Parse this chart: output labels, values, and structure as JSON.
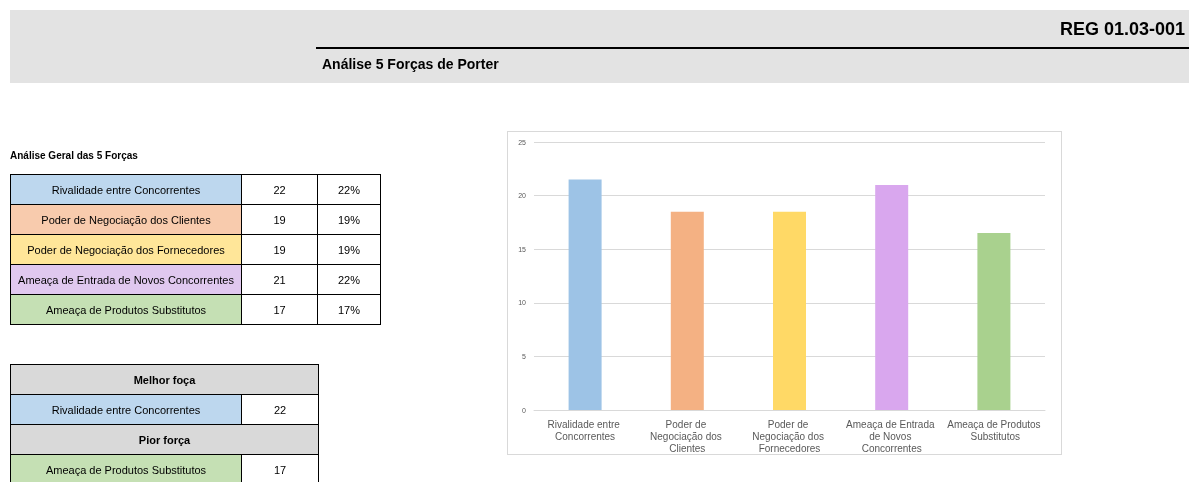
{
  "chart_data": [
    {
      "type": "other",
      "title": "Análise 5 Forças de Porter",
      "annotations": [
        "REG 01.03-001"
      ]
    },
    {
      "type": "other",
      "title": "Análise Geral das 5 Forças",
      "categories": [
        "Rivalidade entre Concorrentes",
        "Poder de Negociação dos Clientes",
        "Poder de Negociação dos Fornecedores",
        "Ameaça de Entrada de Novos Concorrentes",
        "Ameaça de Produtos Substitutos"
      ],
      "values": [
        22,
        19,
        19,
        21,
        17
      ],
      "data_labels": true,
      "annotations": [
        "22%",
        "19%",
        "19%",
        "22%",
        "17%"
      ],
      "colors": [
        "#bdd7ee",
        "#f8cbad",
        "#ffe699",
        "#e0c8ef",
        "#c5e0b4"
      ]
    },
    {
      "type": "other",
      "annotations": [
        "Melhor foça",
        "Pior força"
      ],
      "categories": [
        "Rivalidade entre Concorrentes",
        "Ameaça de Produtos Substitutos"
      ],
      "values": [
        22,
        17
      ],
      "data_labels": true,
      "colors": [
        "#bdd7ee",
        "#c5e0b4"
      ]
    },
    {
      "type": "bar",
      "categories": [
        "Rivalidade entre Concorrentes",
        "Poder de Negociação dos Clientes",
        "Poder de Negociação dos Fornecedores",
        "Ameaça de Entrada de Novos Concorrentes",
        "Ameaça de Produtos Substitutos"
      ],
      "values": [
        21.5,
        18.5,
        18.5,
        21,
        16.5
      ],
      "colors": [
        "#9dc3e6",
        "#f4b183",
        "#ffd966",
        "#d9a7ee",
        "#a9d18e"
      ],
      "ylim": [
        0,
        25
      ],
      "yticks": [
        0,
        5,
        10,
        15,
        20,
        25
      ],
      "grid": "y"
    }
  ]
}
